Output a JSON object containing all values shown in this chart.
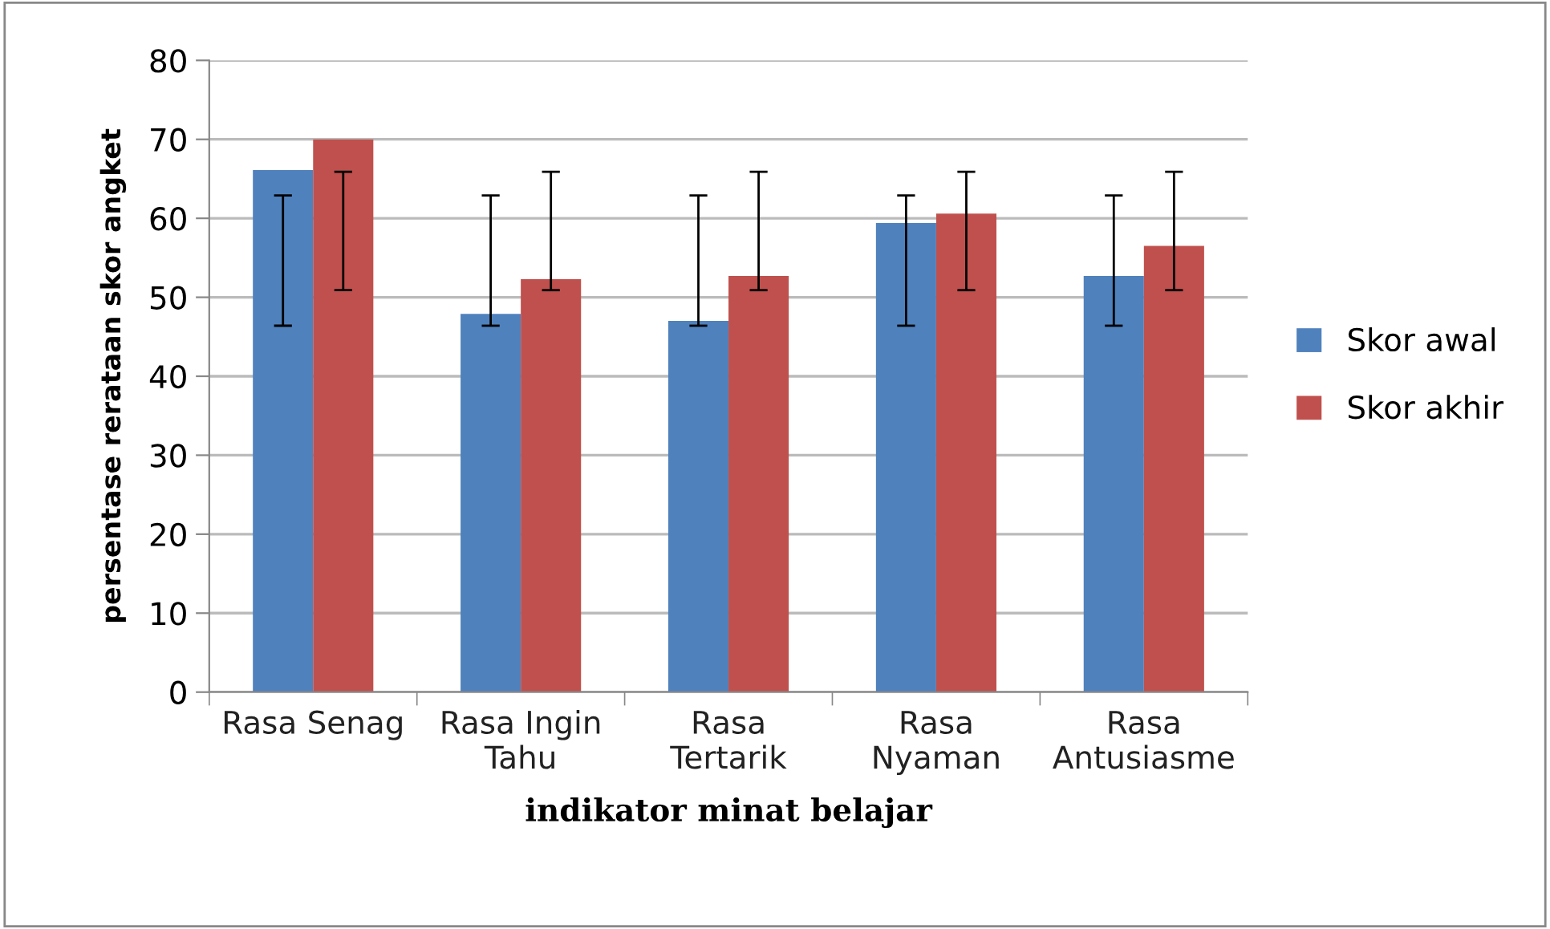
{
  "chart_data": {
    "type": "bar",
    "xlabel": "indikator minat belajar",
    "ylabel": "persentase rerataan skor angket",
    "categories": [
      "Rasa Senag",
      "Rasa Ingin\nTahu",
      "Rasa\nTertarik",
      "Rasa\nNyaman",
      "Rasa\nAntusiasme"
    ],
    "series": [
      {
        "name": "Skor awal",
        "color": "#4f81bd",
        "values": [
          66.1,
          47.9,
          47.0,
          59.4,
          52.7
        ],
        "errors": [
          [
            46.4,
            62.9
          ],
          [
            46.4,
            62.9
          ],
          [
            46.4,
            62.9
          ],
          [
            46.4,
            62.9
          ],
          [
            46.4,
            62.9
          ]
        ]
      },
      {
        "name": "Skor akhir",
        "color": "#c0504d",
        "values": [
          70.0,
          52.3,
          52.7,
          60.6,
          56.5
        ],
        "errors": [
          [
            50.9,
            65.9
          ],
          [
            50.9,
            65.9
          ],
          [
            50.9,
            65.9
          ],
          [
            50.9,
            65.9
          ],
          [
            50.9,
            65.9
          ]
        ]
      }
    ],
    "ylim": [
      0,
      80
    ],
    "yticks": [
      0,
      10,
      20,
      30,
      40,
      50,
      60,
      70,
      80
    ],
    "grid": "y",
    "legend": "right"
  }
}
